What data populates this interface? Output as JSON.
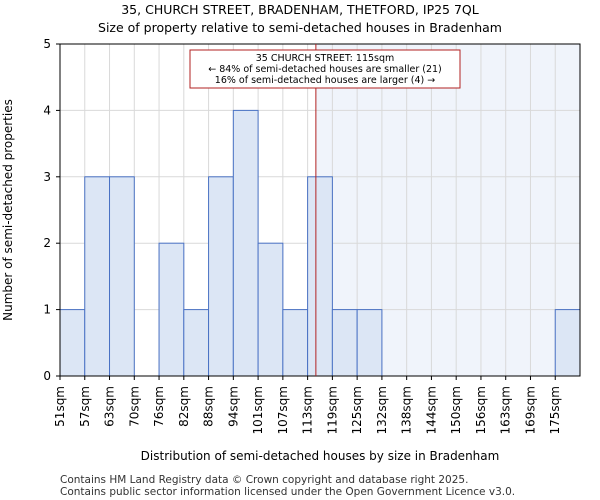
{
  "title_line1": "35, CHURCH STREET, BRADENHAM, THETFORD, IP25 7QL",
  "title_line2": "Size of property relative to semi-detached houses in Bradenham",
  "footer_line1": "Contains HM Land Registry data © Crown copyright and database right 2025.",
  "footer_line2": "Contains public sector information licensed under the Open Government Licence v3.0.",
  "chart_data": {
    "type": "bar",
    "title": "35, CHURCH STREET, BRADENHAM, THETFORD, IP25 7QL",
    "subtitle": "Size of property relative to semi-detached houses in Bradenham",
    "xlabel": "Distribution of semi-detached houses by size in Bradenham",
    "ylabel": "Number of semi-detached properties",
    "categories": [
      "51sqm",
      "57sqm",
      "63sqm",
      "70sqm",
      "76sqm",
      "82sqm",
      "88sqm",
      "94sqm",
      "101sqm",
      "107sqm",
      "113sqm",
      "119sqm",
      "125sqm",
      "132sqm",
      "138sqm",
      "144sqm",
      "150sqm",
      "156sqm",
      "163sqm",
      "169sqm",
      "175sqm"
    ],
    "values": [
      1,
      3,
      3,
      0,
      2,
      1,
      3,
      4,
      2,
      1,
      3,
      1,
      1,
      0,
      0,
      0,
      0,
      0,
      0,
      0,
      1
    ],
    "ylim": [
      0,
      5
    ],
    "yticks": [
      0,
      1,
      2,
      3,
      4,
      5
    ],
    "grid": true,
    "bar_color": "#dce6f5",
    "bar_edge_color": "#4a72c4",
    "highlight_color": "#f0f4fb",
    "marker_color": "#b22222",
    "marker_value_sqm": 115,
    "annotation": {
      "lines": [
        "35 CHURCH STREET: 115sqm",
        "← 84% of semi-detached houses are smaller (21)",
        "16% of semi-detached houses are larger (4) →"
      ]
    }
  }
}
